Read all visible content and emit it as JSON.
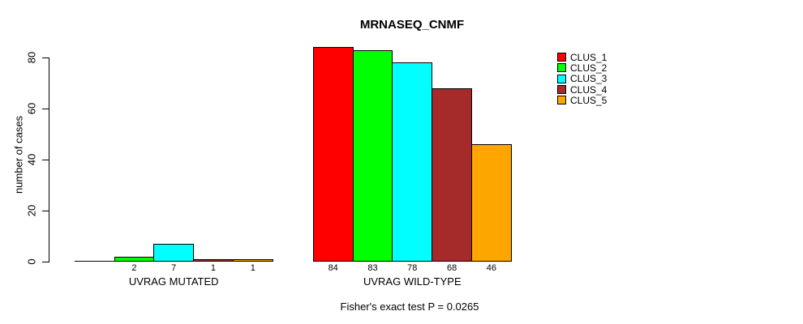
{
  "chart_data": {
    "type": "bar",
    "title": "MRNASEQ_CNMF",
    "ylabel": "number of cases",
    "xlabel": "",
    "ylim": [
      0,
      84
    ],
    "yticks": [
      0,
      20,
      40,
      60,
      80
    ],
    "grid": false,
    "legend_position": "right-outside",
    "series_names": [
      "CLUS_1",
      "CLUS_2",
      "CLUS_3",
      "CLUS_4",
      "CLUS_5"
    ],
    "series_colors": [
      "#FF0000",
      "#00FF00",
      "#00FFFF",
      "#A52A2A",
      "#FFA500"
    ],
    "groups": [
      {
        "label": "UVRAG MUTATED",
        "values": [
          0,
          2,
          7,
          1,
          1
        ],
        "bar_labels": [
          "",
          "2",
          "7",
          "1",
          "1"
        ]
      },
      {
        "label": "UVRAG WILD-TYPE",
        "values": [
          84,
          83,
          78,
          68,
          46
        ],
        "bar_labels": [
          "84",
          "83",
          "78",
          "68",
          "46"
        ]
      }
    ],
    "annotation": "Fisher's exact test P = 0.0265"
  }
}
